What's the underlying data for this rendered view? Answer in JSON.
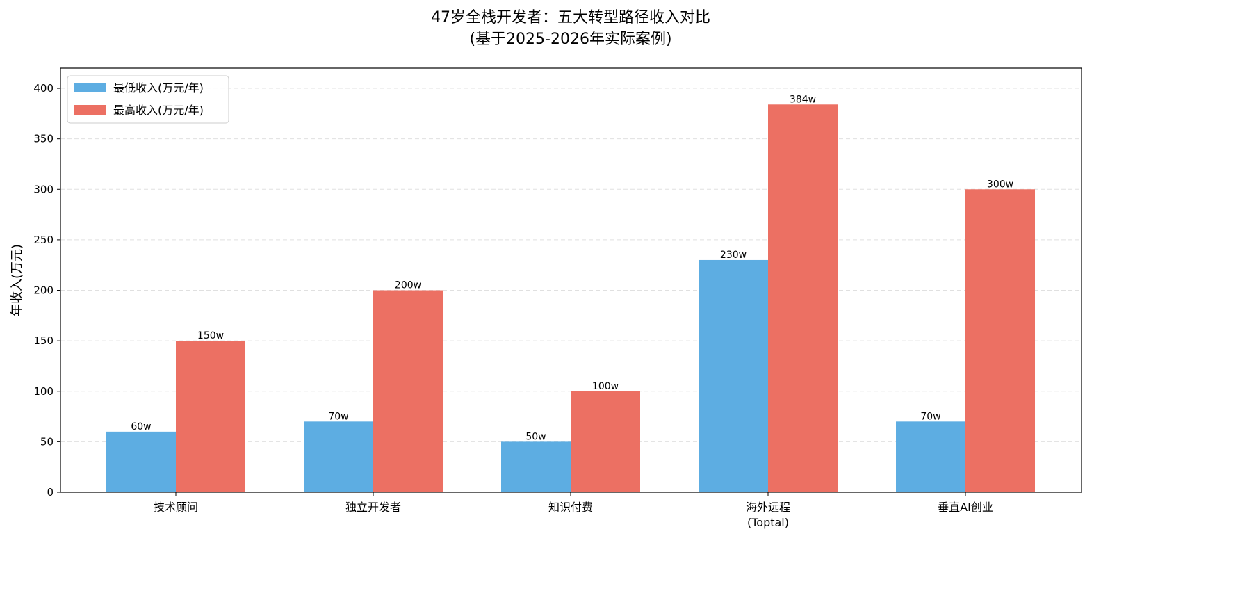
{
  "chart_data": {
    "type": "bar",
    "title": "47岁全栈开发者：五大转型路径收入对比",
    "subtitle": "(基于2025-2026年实际案例)",
    "xlabel": "",
    "ylabel": "年收入(万元)",
    "ylim": [
      0,
      420
    ],
    "yticks": [
      0,
      50,
      100,
      150,
      200,
      250,
      300,
      350,
      400
    ],
    "grid": "y, dashed",
    "legend_position": "top-left",
    "categories": [
      "技术顾问",
      "独立开发者",
      "知识付费",
      "海外远程\n(Toptal)",
      "垂直AI创业"
    ],
    "series": [
      {
        "name": "最低收入(万元/年)",
        "color": "#5DADE2",
        "values": [
          60,
          70,
          50,
          230,
          70
        ],
        "labels": [
          "60w",
          "70w",
          "50w",
          "230w",
          "70w"
        ]
      },
      {
        "name": "最高收入(万元/年)",
        "color": "#EC7063",
        "values": [
          150,
          200,
          100,
          384,
          300
        ],
        "labels": [
          "150w",
          "200w",
          "100w",
          "384w",
          "300w"
        ]
      }
    ]
  }
}
